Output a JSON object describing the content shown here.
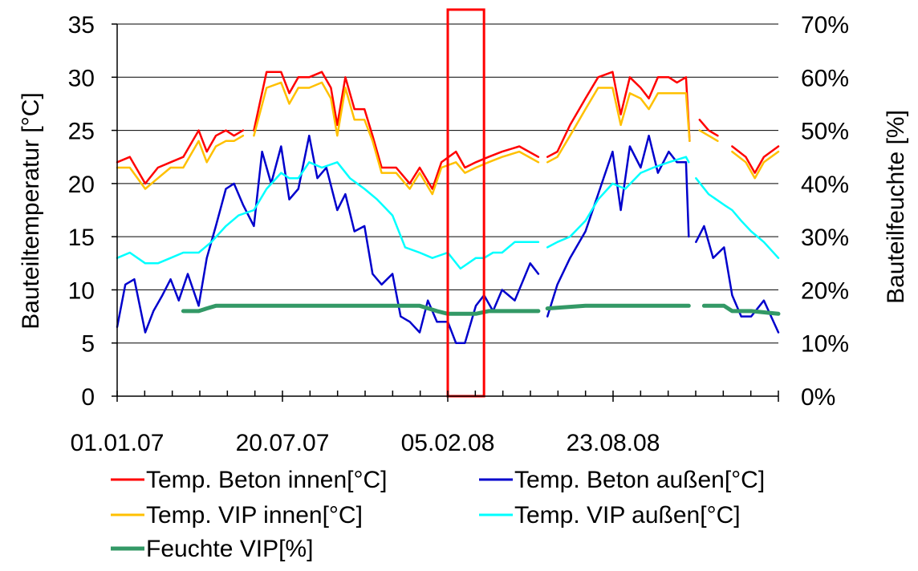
{
  "chart_data": {
    "type": "line",
    "title": "",
    "ylabel": "Bauteiltemperatur [°C]",
    "y2label": "Bauteilfeuchte [%]",
    "ylim": [
      0,
      35
    ],
    "y2lim": [
      0,
      70
    ],
    "y_ticks": [
      "0",
      "5",
      "10",
      "15",
      "20",
      "25",
      "30",
      "35"
    ],
    "y2_ticks": [
      "0%",
      "10%",
      "20%",
      "30%",
      "40%",
      "50%",
      "60%",
      "70%"
    ],
    "x_ticks": [
      "01.01.07",
      "20.07.07",
      "05.02.08",
      "23.08.08"
    ],
    "x_range": [
      "01.01.07",
      "31.12.08"
    ],
    "grid": "horizontal",
    "legend_position": "bottom",
    "highlight_box": {
      "from": "01.01.08",
      "to": "10.02.08",
      "color": "#ff0000"
    },
    "series": [
      {
        "name": "Temp. Beton innen[°C]",
        "color": "#ff0000",
        "axis": "left",
        "points": [
          [
            "01.01.07",
            22.0
          ],
          [
            "15.01.07",
            22.5
          ],
          [
            "01.02.07",
            20.0
          ],
          [
            "15.02.07",
            21.5
          ],
          [
            "01.03.07",
            22.0
          ],
          [
            "15.03.07",
            22.5
          ],
          [
            "01.04.07",
            25.0
          ],
          [
            "10.04.07",
            23.0
          ],
          [
            "20.04.07",
            24.5
          ],
          [
            "01.05.07",
            25.0
          ],
          [
            "10.05.07",
            24.5
          ],
          [
            "20.05.07",
            25.0
          ],
          [
            null,
            null
          ],
          [
            "01.06.07",
            25.0
          ],
          [
            "15.06.07",
            30.5
          ],
          [
            "01.07.07",
            30.5
          ],
          [
            "10.07.07",
            28.5
          ],
          [
            "20.07.07",
            30.0
          ],
          [
            "01.08.07",
            30.0
          ],
          [
            "15.08.07",
            30.5
          ],
          [
            "25.08.07",
            29.0
          ],
          [
            "01.09.07",
            25.5
          ],
          [
            "10.09.07",
            30.0
          ],
          [
            "20.09.07",
            27.0
          ],
          [
            "01.10.07",
            27.0
          ],
          [
            "10.10.07",
            24.5
          ],
          [
            "20.10.07",
            21.5
          ],
          [
            "05.11.07",
            21.5
          ],
          [
            "20.11.07",
            20.0
          ],
          [
            "01.12.07",
            21.5
          ],
          [
            "15.12.07",
            19.5
          ],
          [
            "25.12.07",
            22.0
          ],
          [
            "10.01.08",
            23.0
          ],
          [
            "20.01.08",
            21.5
          ],
          [
            "01.02.08",
            22.0
          ],
          [
            "15.02.08",
            22.5
          ],
          [
            "01.03.08",
            23.0
          ],
          [
            "20.03.08",
            23.5
          ],
          [
            "10.04.08",
            22.5
          ],
          [
            null,
            null
          ],
          [
            "20.04.08",
            22.5
          ],
          [
            "01.05.08",
            23.0
          ],
          [
            "15.05.08",
            25.5
          ],
          [
            "01.06.08",
            28.0
          ],
          [
            "15.06.08",
            30.0
          ],
          [
            "01.07.08",
            30.5
          ],
          [
            "10.07.08",
            26.5
          ],
          [
            "20.07.08",
            30.0
          ],
          [
            "01.08.08",
            29.0
          ],
          [
            "10.08.08",
            28.0
          ],
          [
            "20.08.08",
            30.0
          ],
          [
            "01.09.08",
            30.0
          ],
          [
            "10.09.08",
            29.5
          ],
          [
            "20.09.08",
            30.0
          ],
          [
            "24.09.08",
            24.0
          ],
          [
            null,
            null
          ],
          [
            "05.10.08",
            26.0
          ],
          [
            "15.10.08",
            25.0
          ],
          [
            "25.10.08",
            24.5
          ],
          [
            null,
            null
          ],
          [
            "10.11.08",
            23.5
          ],
          [
            "25.11.08",
            22.5
          ],
          [
            "05.12.08",
            21.0
          ],
          [
            "15.12.08",
            22.5
          ],
          [
            "31.12.08",
            23.5
          ]
        ]
      },
      {
        "name": "Temp. Beton außen[°C]",
        "color": "#0000cc",
        "axis": "left",
        "points": [
          [
            "01.01.07",
            6.5
          ],
          [
            "10.01.07",
            10.5
          ],
          [
            "20.01.07",
            11.0
          ],
          [
            "01.02.07",
            6.0
          ],
          [
            "10.02.07",
            8.0
          ],
          [
            "20.02.07",
            9.5
          ],
          [
            "01.03.07",
            11.0
          ],
          [
            "10.03.07",
            9.0
          ],
          [
            "20.03.07",
            11.5
          ],
          [
            "01.04.07",
            8.5
          ],
          [
            "10.04.07",
            13.0
          ],
          [
            "20.04.07",
            16.0
          ],
          [
            "01.05.07",
            19.5
          ],
          [
            "10.05.07",
            20.0
          ],
          [
            "20.05.07",
            18.0
          ],
          [
            "01.06.07",
            16.0
          ],
          [
            "10.06.07",
            23.0
          ],
          [
            "20.06.07",
            20.0
          ],
          [
            "01.07.07",
            23.5
          ],
          [
            "10.07.07",
            18.5
          ],
          [
            "20.07.07",
            19.5
          ],
          [
            "01.08.07",
            24.5
          ],
          [
            "10.08.07",
            20.5
          ],
          [
            "20.08.07",
            21.5
          ],
          [
            "01.09.07",
            17.5
          ],
          [
            "10.09.07",
            19.0
          ],
          [
            "20.09.07",
            15.5
          ],
          [
            "01.10.07",
            16.0
          ],
          [
            "10.10.07",
            11.5
          ],
          [
            "20.10.07",
            10.5
          ],
          [
            "01.11.07",
            11.5
          ],
          [
            "10.11.07",
            7.5
          ],
          [
            "20.11.07",
            7.0
          ],
          [
            "01.12.07",
            6.0
          ],
          [
            "10.12.07",
            9.0
          ],
          [
            "20.12.07",
            7.0
          ],
          [
            "01.01.08",
            7.0
          ],
          [
            "10.01.08",
            5.0
          ],
          [
            "20.01.08",
            5.0
          ],
          [
            "01.02.08",
            8.5
          ],
          [
            "10.02.08",
            9.5
          ],
          [
            "20.02.08",
            8.0
          ],
          [
            "01.03.08",
            10.0
          ],
          [
            "15.03.08",
            9.0
          ],
          [
            "01.04.08",
            12.5
          ],
          [
            "10.04.08",
            11.5
          ],
          [
            null,
            null
          ],
          [
            "20.04.08",
            7.5
          ],
          [
            "01.05.08",
            10.5
          ],
          [
            "15.05.08",
            13.0
          ],
          [
            "01.06.08",
            15.5
          ],
          [
            "15.06.08",
            19.0
          ],
          [
            "01.07.08",
            23.0
          ],
          [
            "10.07.08",
            17.5
          ],
          [
            "20.07.08",
            23.5
          ],
          [
            "01.08.08",
            21.5
          ],
          [
            "10.08.08",
            24.5
          ],
          [
            "20.08.08",
            21.0
          ],
          [
            "01.09.08",
            23.0
          ],
          [
            "10.09.08",
            22.0
          ],
          [
            "20.09.08",
            22.0
          ],
          [
            "23.09.08",
            15.0
          ],
          [
            null,
            null
          ],
          [
            "01.10.08",
            14.5
          ],
          [
            "10.10.08",
            16.0
          ],
          [
            "20.10.08",
            13.0
          ],
          [
            "01.11.08",
            14.0
          ],
          [
            "10.11.08",
            9.5
          ],
          [
            "20.11.08",
            7.5
          ],
          [
            "01.12.08",
            7.5
          ],
          [
            "15.12.08",
            9.0
          ],
          [
            "31.12.08",
            6.0
          ]
        ]
      },
      {
        "name": "Temp. VIP innen[°C]",
        "color": "#ffc000",
        "axis": "left",
        "points": [
          [
            "01.01.07",
            21.5
          ],
          [
            "15.01.07",
            21.5
          ],
          [
            "01.02.07",
            19.5
          ],
          [
            "15.02.07",
            20.5
          ],
          [
            "01.03.07",
            21.5
          ],
          [
            "15.03.07",
            21.5
          ],
          [
            "01.04.07",
            24.0
          ],
          [
            "10.04.07",
            22.0
          ],
          [
            "20.04.07",
            23.5
          ],
          [
            "01.05.07",
            24.0
          ],
          [
            "10.05.07",
            24.0
          ],
          [
            "20.05.07",
            24.5
          ],
          [
            null,
            null
          ],
          [
            "01.06.07",
            24.5
          ],
          [
            "15.06.07",
            29.0
          ],
          [
            "01.07.07",
            29.5
          ],
          [
            "10.07.07",
            27.5
          ],
          [
            "20.07.07",
            29.0
          ],
          [
            "01.08.07",
            29.0
          ],
          [
            "15.08.07",
            29.5
          ],
          [
            "25.08.07",
            28.0
          ],
          [
            "01.09.07",
            24.5
          ],
          [
            "10.09.07",
            29.0
          ],
          [
            "20.09.07",
            26.0
          ],
          [
            "01.10.07",
            26.0
          ],
          [
            "10.10.07",
            24.0
          ],
          [
            "20.10.07",
            21.0
          ],
          [
            "05.11.07",
            21.0
          ],
          [
            "20.11.07",
            19.5
          ],
          [
            "01.12.07",
            21.0
          ],
          [
            "15.12.07",
            19.0
          ],
          [
            "25.12.07",
            21.5
          ],
          [
            "10.01.08",
            22.0
          ],
          [
            "20.01.08",
            21.0
          ],
          [
            "01.02.08",
            21.5
          ],
          [
            "15.02.08",
            22.0
          ],
          [
            "01.03.08",
            22.5
          ],
          [
            "20.03.08",
            23.0
          ],
          [
            "10.04.08",
            22.0
          ],
          [
            null,
            null
          ],
          [
            "20.04.08",
            22.0
          ],
          [
            "01.05.08",
            22.5
          ],
          [
            "15.05.08",
            24.5
          ],
          [
            "01.06.08",
            27.0
          ],
          [
            "15.06.08",
            29.0
          ],
          [
            "01.07.08",
            29.0
          ],
          [
            "10.07.08",
            25.5
          ],
          [
            "20.07.08",
            28.5
          ],
          [
            "01.08.08",
            28.0
          ],
          [
            "10.08.08",
            27.0
          ],
          [
            "20.08.08",
            28.5
          ],
          [
            "01.09.08",
            28.5
          ],
          [
            "10.09.08",
            28.5
          ],
          [
            "20.09.08",
            28.5
          ],
          [
            "24.09.08",
            24.0
          ],
          [
            null,
            null
          ],
          [
            "05.10.08",
            25.0
          ],
          [
            "15.10.08",
            24.5
          ],
          [
            "25.10.08",
            24.0
          ],
          [
            null,
            null
          ],
          [
            "10.11.08",
            23.0
          ],
          [
            "25.11.08",
            22.0
          ],
          [
            "05.12.08",
            20.5
          ],
          [
            "15.12.08",
            22.0
          ],
          [
            "31.12.08",
            23.0
          ]
        ]
      },
      {
        "name": "Temp. VIP außen[°C]",
        "color": "#00ffff",
        "axis": "left",
        "points": [
          [
            "01.01.07",
            13.0
          ],
          [
            "15.01.07",
            13.5
          ],
          [
            "01.02.07",
            12.5
          ],
          [
            "15.02.07",
            12.5
          ],
          [
            "01.03.07",
            13.0
          ],
          [
            "15.03.07",
            13.5
          ],
          [
            "01.04.07",
            13.5
          ],
          [
            "15.04.07",
            14.5
          ],
          [
            "01.05.07",
            16.0
          ],
          [
            "15.05.07",
            17.0
          ],
          [
            "01.06.07",
            17.5
          ],
          [
            "15.06.07",
            19.5
          ],
          [
            "01.07.07",
            21.0
          ],
          [
            "10.07.07",
            20.5
          ],
          [
            "20.07.07",
            20.5
          ],
          [
            "01.08.07",
            22.0
          ],
          [
            "15.08.07",
            21.5
          ],
          [
            "01.09.07",
            22.0
          ],
          [
            "15.09.07",
            20.5
          ],
          [
            "01.10.07",
            19.5
          ],
          [
            "15.10.07",
            18.5
          ],
          [
            "01.11.07",
            17.0
          ],
          [
            "15.11.07",
            14.0
          ],
          [
            "01.12.07",
            13.5
          ],
          [
            "15.12.07",
            13.0
          ],
          [
            "01.01.08",
            13.5
          ],
          [
            "15.01.08",
            12.0
          ],
          [
            "01.02.08",
            13.0
          ],
          [
            "10.02.08",
            13.0
          ],
          [
            "20.02.08",
            13.5
          ],
          [
            "01.03.08",
            13.5
          ],
          [
            "15.03.08",
            14.5
          ],
          [
            "10.04.08",
            14.5
          ],
          [
            null,
            null
          ],
          [
            "20.04.08",
            14.0
          ],
          [
            "01.05.08",
            14.5
          ],
          [
            "15.05.08",
            15.0
          ],
          [
            "01.06.08",
            16.5
          ],
          [
            "15.06.08",
            18.5
          ],
          [
            "01.07.08",
            20.0
          ],
          [
            "15.07.08",
            19.5
          ],
          [
            "01.08.08",
            21.0
          ],
          [
            "15.08.08",
            21.5
          ],
          [
            "01.09.08",
            22.0
          ],
          [
            "20.09.08",
            22.5
          ],
          [
            "23.09.08",
            22.0
          ],
          [
            null,
            null
          ],
          [
            "01.10.08",
            20.5
          ],
          [
            "15.10.08",
            19.0
          ],
          [
            "01.11.08",
            18.0
          ],
          [
            "10.11.08",
            17.5
          ],
          [
            "20.11.08",
            16.5
          ],
          [
            "01.12.08",
            15.5
          ],
          [
            "15.12.08",
            14.5
          ],
          [
            "31.12.08",
            13.0
          ]
        ]
      },
      {
        "name": "Feuchte VIP[%]",
        "color": "#339966",
        "axis": "right",
        "points": [
          [
            "15.03.07",
            16.0
          ],
          [
            "01.04.07",
            16.0
          ],
          [
            "10.04.07",
            16.5
          ],
          [
            "20.04.07",
            17.0
          ],
          [
            "01.06.07",
            17.0
          ],
          [
            "01.08.07",
            17.0
          ],
          [
            "01.10.07",
            17.0
          ],
          [
            "01.12.07",
            17.0
          ],
          [
            "20.12.07",
            16.0
          ],
          [
            "01.01.08",
            15.5
          ],
          [
            "01.02.08",
            15.5
          ],
          [
            "15.02.08",
            16.0
          ],
          [
            "10.04.08",
            16.0
          ],
          [
            null,
            null
          ],
          [
            "20.04.08",
            16.5
          ],
          [
            "01.06.08",
            17.0
          ],
          [
            "01.08.08",
            17.0
          ],
          [
            "23.09.08",
            17.0
          ],
          [
            null,
            null
          ],
          [
            "10.10.08",
            17.0
          ],
          [
            "01.11.08",
            17.0
          ],
          [
            "10.11.08",
            16.0
          ],
          [
            "01.12.08",
            16.0
          ],
          [
            "31.12.08",
            15.5
          ]
        ]
      }
    ]
  }
}
